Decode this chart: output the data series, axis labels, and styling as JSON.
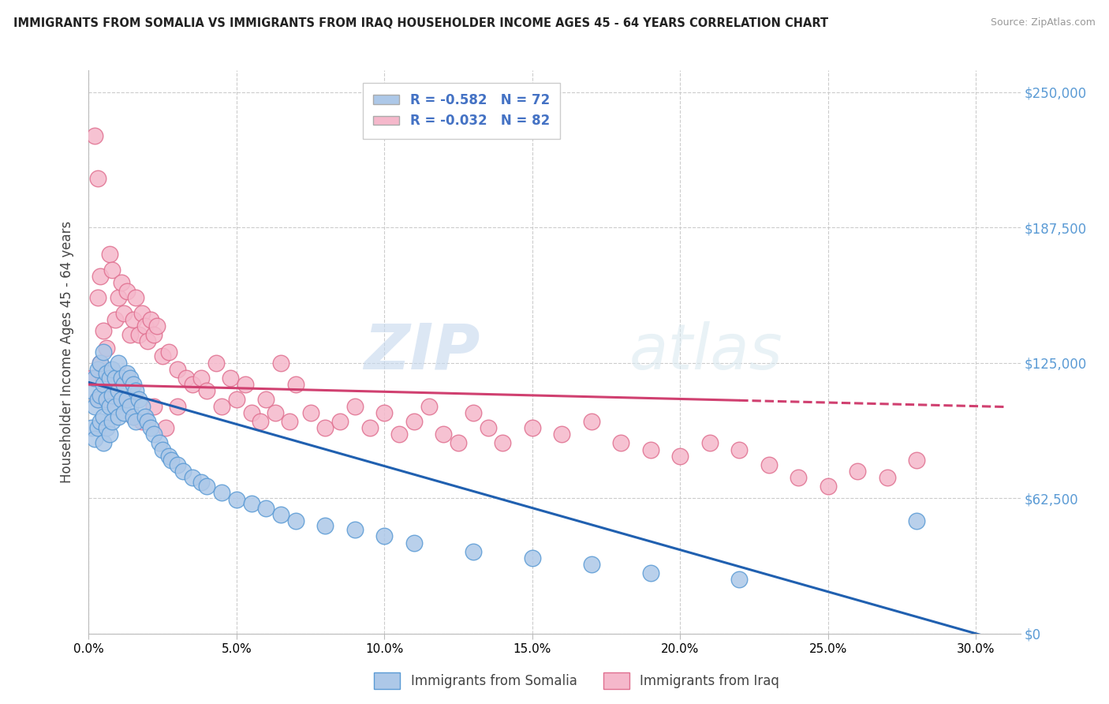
{
  "title": "IMMIGRANTS FROM SOMALIA VS IMMIGRANTS FROM IRAQ HOUSEHOLDER INCOME AGES 45 - 64 YEARS CORRELATION CHART",
  "source": "Source: ZipAtlas.com",
  "ylabel": "Householder Income Ages 45 - 64 years",
  "xlabel_ticks": [
    "0.0%",
    "5.0%",
    "10.0%",
    "15.0%",
    "20.0%",
    "25.0%",
    "30.0%"
  ],
  "xlabel_vals": [
    0.0,
    0.05,
    0.1,
    0.15,
    0.2,
    0.25,
    0.3
  ],
  "ytick_labels": [
    "$0",
    "$62,500",
    "$125,000",
    "$187,500",
    "$250,000"
  ],
  "ytick_vals": [
    0,
    62500,
    125000,
    187500,
    250000
  ],
  "ylim": [
    0,
    260000
  ],
  "xlim": [
    0.0,
    0.31
  ],
  "watermark": "ZIPatlas",
  "somalia_color": "#adc8e8",
  "iraq_color": "#f5b8cb",
  "somalia_edge": "#5b9bd5",
  "iraq_edge": "#e07090",
  "somalia_line_color": "#2060b0",
  "iraq_line_color": "#d04070",
  "R_somalia": -0.582,
  "N_somalia": 72,
  "R_iraq": -0.032,
  "N_iraq": 82,
  "somalia_x": [
    0.001,
    0.001,
    0.002,
    0.002,
    0.002,
    0.003,
    0.003,
    0.003,
    0.004,
    0.004,
    0.004,
    0.005,
    0.005,
    0.005,
    0.005,
    0.006,
    0.006,
    0.006,
    0.007,
    0.007,
    0.007,
    0.008,
    0.008,
    0.008,
    0.009,
    0.009,
    0.01,
    0.01,
    0.01,
    0.011,
    0.011,
    0.012,
    0.012,
    0.013,
    0.013,
    0.014,
    0.014,
    0.015,
    0.015,
    0.016,
    0.016,
    0.017,
    0.018,
    0.019,
    0.02,
    0.021,
    0.022,
    0.024,
    0.025,
    0.027,
    0.028,
    0.03,
    0.032,
    0.035,
    0.038,
    0.04,
    0.045,
    0.05,
    0.055,
    0.06,
    0.065,
    0.07,
    0.08,
    0.09,
    0.1,
    0.11,
    0.13,
    0.15,
    0.17,
    0.19,
    0.22,
    0.28
  ],
  "somalia_y": [
    112000,
    95000,
    118000,
    105000,
    90000,
    122000,
    108000,
    95000,
    125000,
    110000,
    98000,
    130000,
    115000,
    100000,
    88000,
    120000,
    108000,
    95000,
    118000,
    105000,
    92000,
    122000,
    110000,
    98000,
    118000,
    105000,
    125000,
    112000,
    100000,
    118000,
    108000,
    115000,
    102000,
    120000,
    108000,
    118000,
    105000,
    115000,
    100000,
    112000,
    98000,
    108000,
    105000,
    100000,
    98000,
    95000,
    92000,
    88000,
    85000,
    82000,
    80000,
    78000,
    75000,
    72000,
    70000,
    68000,
    65000,
    62000,
    60000,
    58000,
    55000,
    52000,
    50000,
    48000,
    45000,
    42000,
    38000,
    35000,
    32000,
    28000,
    25000,
    52000
  ],
  "iraq_x": [
    0.001,
    0.002,
    0.003,
    0.003,
    0.004,
    0.004,
    0.005,
    0.006,
    0.007,
    0.008,
    0.009,
    0.01,
    0.011,
    0.012,
    0.013,
    0.014,
    0.015,
    0.016,
    0.017,
    0.018,
    0.019,
    0.02,
    0.021,
    0.022,
    0.023,
    0.025,
    0.027,
    0.03,
    0.033,
    0.035,
    0.038,
    0.04,
    0.043,
    0.045,
    0.048,
    0.05,
    0.053,
    0.055,
    0.058,
    0.06,
    0.063,
    0.065,
    0.068,
    0.07,
    0.075,
    0.08,
    0.085,
    0.09,
    0.095,
    0.1,
    0.105,
    0.11,
    0.115,
    0.12,
    0.125,
    0.13,
    0.135,
    0.14,
    0.15,
    0.16,
    0.17,
    0.18,
    0.19,
    0.2,
    0.21,
    0.22,
    0.23,
    0.24,
    0.25,
    0.26,
    0.27,
    0.28,
    0.003,
    0.005,
    0.007,
    0.009,
    0.012,
    0.015,
    0.018,
    0.022,
    0.026,
    0.03
  ],
  "iraq_y": [
    118000,
    230000,
    210000,
    155000,
    165000,
    125000,
    140000,
    132000,
    175000,
    168000,
    145000,
    155000,
    162000,
    148000,
    158000,
    138000,
    145000,
    155000,
    138000,
    148000,
    142000,
    135000,
    145000,
    138000,
    142000,
    128000,
    130000,
    122000,
    118000,
    115000,
    118000,
    112000,
    125000,
    105000,
    118000,
    108000,
    115000,
    102000,
    98000,
    108000,
    102000,
    125000,
    98000,
    115000,
    102000,
    95000,
    98000,
    105000,
    95000,
    102000,
    92000,
    98000,
    105000,
    92000,
    88000,
    102000,
    95000,
    88000,
    95000,
    92000,
    98000,
    88000,
    85000,
    82000,
    88000,
    85000,
    78000,
    72000,
    68000,
    75000,
    72000,
    80000,
    108000,
    118000,
    108000,
    115000,
    108000,
    100000,
    98000,
    105000,
    95000,
    105000
  ]
}
